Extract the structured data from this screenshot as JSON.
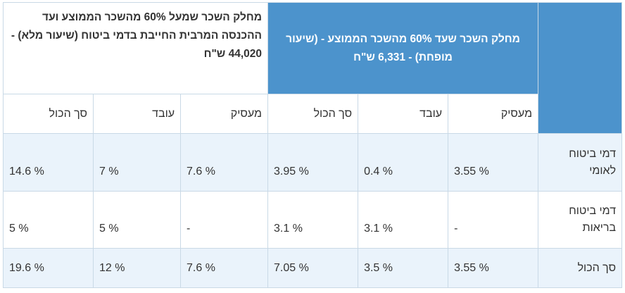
{
  "header": {
    "group_low": "מחלק השכר שעד 60% מהשכר הממוצע - (שיעור מופחת) - 6,331 ש\"ח",
    "group_high": "מחלק השכר שמעל 60% מהשכר הממוצע ועד ההכנסה המרבית החייבת בדמי ביטוח (שיעור מלא) - 44,020 ש\"ח"
  },
  "columns": [
    "מעסיק",
    "עובד",
    "סך הכול",
    "מעסיק",
    "עובד",
    "סך הכול"
  ],
  "rows": [
    {
      "label": "דמי ביטוח לאומי",
      "values": [
        "3.55 %",
        "0.4 %",
        "3.95 %",
        "7.6 %",
        "7 %",
        "14.6 %"
      ]
    },
    {
      "label": "דמי ביטוח בריאות",
      "values": [
        "-",
        "3.1 %",
        "3.1 %",
        "-",
        "5 %",
        "5 %"
      ]
    },
    {
      "label": "סך הכול",
      "values": [
        "3.55 %",
        "3.5 %",
        "7.05 %",
        "7.6 %",
        "12 %",
        "19.6 %"
      ]
    }
  ]
}
